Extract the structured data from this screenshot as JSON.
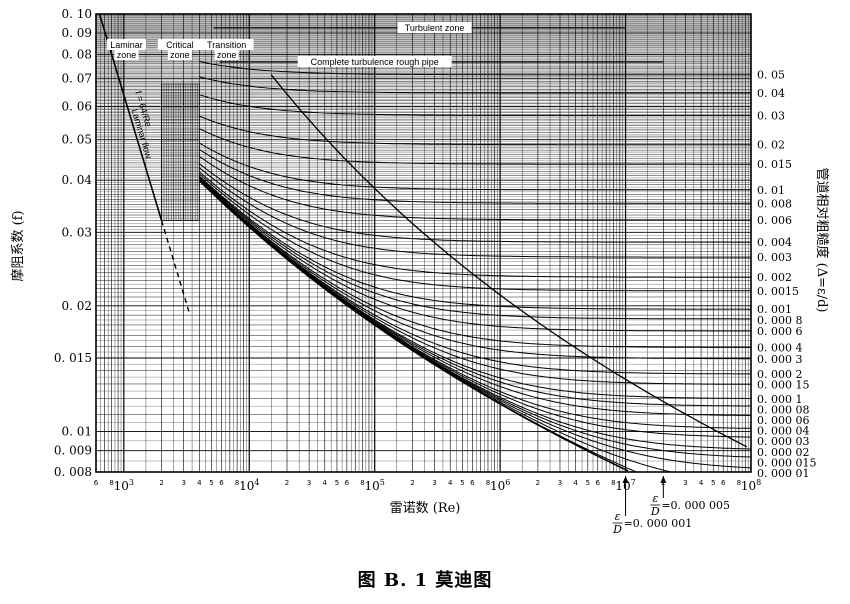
{
  "caption": "图 B. 1   莫迪图",
  "chart_data": {
    "type": "line",
    "title": "",
    "xlabel": "雷诺数 (Re)",
    "ylabel": "摩阻系数 (f)",
    "y2label": "管道相对粗糙度 (Δ=ε/d)",
    "xscale": "log",
    "yscale": "log",
    "xlim": [
      600,
      100000000
    ],
    "ylim": [
      0.008,
      0.1
    ],
    "grid": true,
    "x_major_ticks": [
      {
        "value": 1000,
        "mant": "10",
        "exp": "3"
      },
      {
        "value": 10000,
        "mant": "10",
        "exp": "4"
      },
      {
        "value": 100000,
        "mant": "10",
        "exp": "5"
      },
      {
        "value": 1000000,
        "mant": "10",
        "exp": "6"
      },
      {
        "value": 10000000,
        "mant": "10",
        "exp": "7"
      },
      {
        "value": 100000000,
        "mant": "10",
        "exp": "8"
      }
    ],
    "x_minor_labels": [
      "2",
      "3",
      "4",
      "5",
      "6",
      "8"
    ],
    "y_ticks": [
      {
        "value": 0.1,
        "label": "0. 10"
      },
      {
        "value": 0.09,
        "label": "0. 09"
      },
      {
        "value": 0.08,
        "label": "0. 08"
      },
      {
        "value": 0.07,
        "label": "0. 07"
      },
      {
        "value": 0.06,
        "label": "0. 06"
      },
      {
        "value": 0.05,
        "label": "0. 05"
      },
      {
        "value": 0.04,
        "label": "0. 04"
      },
      {
        "value": 0.03,
        "label": "0. 03"
      },
      {
        "value": 0.02,
        "label": "0. 02"
      },
      {
        "value": 0.015,
        "label": "0. 015"
      },
      {
        "value": 0.01,
        "label": "0. 01"
      },
      {
        "value": 0.009,
        "label": "0. 009"
      },
      {
        "value": 0.008,
        "label": "0. 008"
      }
    ],
    "relative_roughness": [
      {
        "value": 0.05,
        "label": "0. 05"
      },
      {
        "value": 0.04,
        "label": "0. 04"
      },
      {
        "value": 0.03,
        "label": "0. 03"
      },
      {
        "value": 0.02,
        "label": "0. 02"
      },
      {
        "value": 0.015,
        "label": "0. 015"
      },
      {
        "value": 0.01,
        "label": "0. 01"
      },
      {
        "value": 0.008,
        "label": "0. 008"
      },
      {
        "value": 0.006,
        "label": "0. 006"
      },
      {
        "value": 0.004,
        "label": "0. 004"
      },
      {
        "value": 0.003,
        "label": "0. 003"
      },
      {
        "value": 0.002,
        "label": "0. 002"
      },
      {
        "value": 0.0015,
        "label": "0. 0015"
      },
      {
        "value": 0.001,
        "label": "0. 001"
      },
      {
        "value": 0.0008,
        "label": "0. 000 8"
      },
      {
        "value": 0.0006,
        "label": "0. 000 6"
      },
      {
        "value": 0.0004,
        "label": "0. 000 4"
      },
      {
        "value": 0.0003,
        "label": "0. 000 3"
      },
      {
        "value": 0.0002,
        "label": "0. 000 2"
      },
      {
        "value": 0.00015,
        "label": "0. 000 15"
      },
      {
        "value": 0.0001,
        "label": "0. 000 1"
      },
      {
        "value": 8e-05,
        "label": "0. 000 08"
      },
      {
        "value": 6e-05,
        "label": "0. 000 06"
      },
      {
        "value": 4e-05,
        "label": "0. 000 04"
      },
      {
        "value": 3e-05,
        "label": "0. 000 03"
      },
      {
        "value": 2e-05,
        "label": "0. 000 02"
      },
      {
        "value": 1.5e-05,
        "label": "0. 000 015"
      },
      {
        "value": 1e-05,
        "label": "0. 000 01"
      },
      {
        "value": 5e-06,
        "label": "0. 000 005"
      },
      {
        "value": 1e-06,
        "label": "0. 000 001"
      }
    ],
    "laminar": {
      "formula": "f = 64/Re",
      "label": "Laminar flow",
      "re_max": 2000
    },
    "critical_zone": {
      "re_min": 2000,
      "re_max": 4000
    },
    "zone_labels": {
      "turbulent": "Turbulent zone",
      "laminar": "Laminar zone",
      "critical": "Critical zone",
      "transition": "Transition zone",
      "rough": "Complete turbulence rough pipe"
    },
    "annotations": [
      {
        "eps": "ε",
        "d": "D",
        "value": "=0. 000 005",
        "re": 20000000
      },
      {
        "eps": "ε",
        "d": "D",
        "value": "=0. 000 001",
        "re": 10000000
      }
    ]
  }
}
